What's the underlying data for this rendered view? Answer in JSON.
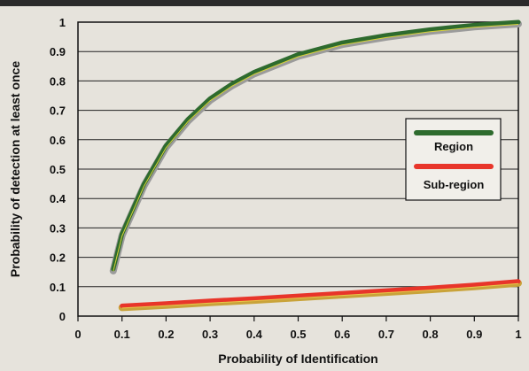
{
  "chart_data": {
    "type": "line",
    "xlabel": "Probability of Identification",
    "ylabel": "Probability of detection at least once",
    "xlim": [
      0,
      1
    ],
    "ylim": [
      0,
      1
    ],
    "x_ticks": [
      "0",
      "0.1",
      "0.2",
      "0.3",
      "0.4",
      "0.5",
      "0.6",
      "0.7",
      "0.8",
      "0.9",
      "1"
    ],
    "y_ticks": [
      "0",
      "0.1",
      "0.2",
      "0.3",
      "0.4",
      "0.5",
      "0.6",
      "0.7",
      "0.8",
      "0.9",
      "1"
    ],
    "grid": "horizontal",
    "legend_position": "right",
    "series": [
      {
        "name": "Region",
        "color": "#2e6b2e",
        "x": [
          0.08,
          0.1,
          0.15,
          0.2,
          0.25,
          0.3,
          0.35,
          0.4,
          0.5,
          0.6,
          0.7,
          0.8,
          0.9,
          1.0
        ],
        "y": [
          0.16,
          0.28,
          0.45,
          0.58,
          0.67,
          0.74,
          0.79,
          0.83,
          0.89,
          0.93,
          0.955,
          0.975,
          0.99,
          1.0
        ]
      },
      {
        "name": "Sub-region",
        "color": "#e8352a",
        "x": [
          0.1,
          0.2,
          0.3,
          0.4,
          0.5,
          0.6,
          0.7,
          0.8,
          0.9,
          1.0
        ],
        "y": [
          0.035,
          0.043,
          0.052,
          0.06,
          0.069,
          0.078,
          0.087,
          0.096,
          0.106,
          0.118
        ]
      }
    ]
  }
}
